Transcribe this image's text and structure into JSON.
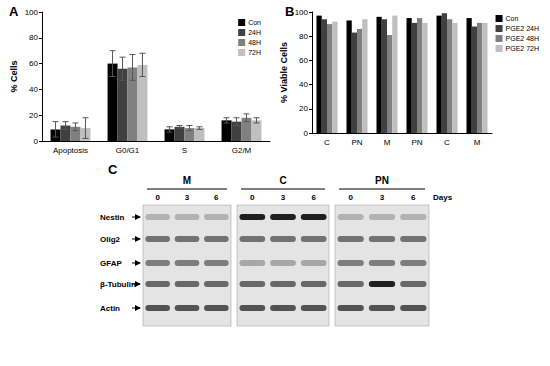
{
  "chart_data": [
    {
      "type": "bar",
      "title": "A",
      "ylabel": "% Cells",
      "categories": [
        "Apoptosis",
        "G0/G1",
        "S",
        "G2/M"
      ],
      "series": [
        {
          "name": "Con",
          "color": "#000000",
          "values": [
            9,
            60,
            9,
            16
          ],
          "errors": [
            6,
            10,
            2,
            2
          ]
        },
        {
          "name": "24H",
          "color": "#404040",
          "values": [
            12,
            56,
            11,
            15
          ],
          "errors": [
            3,
            9,
            1,
            3
          ]
        },
        {
          "name": "48H",
          "color": "#808080",
          "values": [
            11,
            57,
            10,
            18
          ],
          "errors": [
            3,
            10,
            2,
            3
          ]
        },
        {
          "name": "72H",
          "color": "#bfbfbf",
          "values": [
            10,
            59,
            10,
            16
          ],
          "errors": [
            8,
            9,
            1,
            2
          ]
        }
      ],
      "ylim": [
        0,
        100
      ],
      "yticks": [
        0,
        20,
        40,
        60,
        80,
        100
      ],
      "grid": false,
      "legend": "top-right"
    },
    {
      "type": "bar",
      "title": "B",
      "ylabel": "% Viable Cells",
      "categories": [
        "C",
        "PN",
        "M",
        "PN",
        "C",
        "M"
      ],
      "series": [
        {
          "name": "Con",
          "color": "#000000",
          "values": [
            97,
            93,
            96,
            95,
            97,
            95
          ]
        },
        {
          "name": "PGE2 24H",
          "color": "#404040",
          "values": [
            94,
            83,
            94,
            91,
            99,
            88
          ]
        },
        {
          "name": "PGE2 48H",
          "color": "#808080",
          "values": [
            90,
            86,
            81,
            95,
            94,
            91
          ]
        },
        {
          "name": "PGE2 72H",
          "color": "#bfbfbf",
          "values": [
            92,
            94,
            97,
            91,
            91,
            91
          ]
        }
      ],
      "ylim": [
        0,
        100
      ],
      "yticks": [
        0,
        20,
        40,
        60,
        80,
        100
      ],
      "grid": false,
      "legend": "top-right"
    }
  ],
  "blot": {
    "title": "C",
    "groups": [
      {
        "name": "M",
        "lanes": [
          "0",
          "3",
          "6"
        ]
      },
      {
        "name": "C",
        "lanes": [
          "0",
          "3",
          "6"
        ]
      },
      {
        "name": "PN",
        "lanes": [
          "0",
          "3",
          "6"
        ]
      }
    ],
    "lane_unit": "Days",
    "rows": [
      "Nestin",
      "Olig2",
      "GFAP",
      "β-Tubulin",
      "Actin"
    ]
  }
}
